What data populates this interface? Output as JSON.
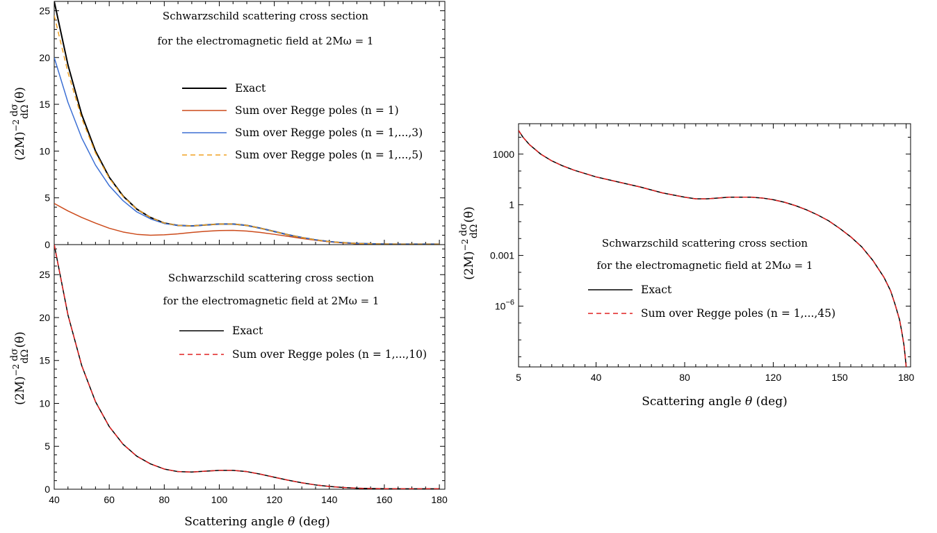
{
  "chart_data": [
    {
      "type": "line",
      "annotation": [
        "Schwarzschild scattering cross section",
        "for the electromagnetic field at 2Mω = 1"
      ],
      "ylabel": "(2M)⁻² dσ/dΩ(θ)",
      "ylabel_parts": {
        "prefix": "(2M)",
        "exponent": "−2",
        "numerator": "dσ",
        "denominator": "dΩ",
        "suffix": "(θ)"
      },
      "xlim": [
        40,
        182
      ],
      "ylim": [
        0,
        26
      ],
      "y_ticks": [
        0,
        5,
        10,
        15,
        20,
        25
      ],
      "y_tick_labels": [
        "0",
        "5",
        "10",
        "15",
        "20",
        "25"
      ],
      "grid": false,
      "legend_position": "center-right",
      "series": [
        {
          "name": "Exact",
          "color": "#000000",
          "dash": "solid",
          "x": [
            40,
            45,
            50,
            55,
            60,
            65,
            70,
            75,
            80,
            85,
            90,
            95,
            100,
            105,
            110,
            115,
            120,
            125,
            130,
            135,
            140,
            145,
            150,
            155,
            160,
            165,
            170,
            175,
            180
          ],
          "y": [
            26.0,
            19.2,
            13.9,
            10.0,
            7.2,
            5.2,
            3.8,
            2.9,
            2.3,
            2.05,
            2.0,
            2.1,
            2.2,
            2.2,
            2.05,
            1.75,
            1.4,
            1.05,
            0.75,
            0.5,
            0.32,
            0.2,
            0.12,
            0.08,
            0.06,
            0.05,
            0.05,
            0.05,
            0.05
          ]
        },
        {
          "name": "Sum over Regge poles (n = 1)",
          "color": "#cc4a1a",
          "dash": "solid",
          "x": [
            40,
            45,
            50,
            55,
            60,
            65,
            70,
            75,
            80,
            85,
            90,
            95,
            100,
            105,
            110,
            115,
            120,
            125,
            130,
            135,
            140,
            145,
            150,
            155,
            160,
            165,
            170,
            175,
            180
          ],
          "y": [
            4.4,
            3.6,
            2.9,
            2.3,
            1.75,
            1.35,
            1.1,
            1.0,
            1.05,
            1.15,
            1.3,
            1.42,
            1.5,
            1.52,
            1.45,
            1.3,
            1.1,
            0.88,
            0.66,
            0.46,
            0.3,
            0.18,
            0.1,
            0.06,
            0.04,
            0.03,
            0.02,
            0.02,
            0.02
          ]
        },
        {
          "name": "Sum over Regge poles (n = 1,...,3)",
          "color": "#3b6fd4",
          "dash": "solid",
          "x": [
            40,
            45,
            50,
            55,
            60,
            65,
            70,
            75,
            80,
            85,
            90,
            95,
            100,
            105,
            110,
            115,
            120,
            125,
            130,
            135,
            140,
            145,
            150,
            155,
            160,
            165,
            170,
            175,
            180
          ],
          "y": [
            20.0,
            15.2,
            11.4,
            8.5,
            6.3,
            4.7,
            3.5,
            2.75,
            2.25,
            2.05,
            2.0,
            2.1,
            2.2,
            2.2,
            2.05,
            1.75,
            1.4,
            1.05,
            0.75,
            0.5,
            0.32,
            0.2,
            0.12,
            0.08,
            0.06,
            0.05,
            0.05,
            0.05,
            0.05
          ]
        },
        {
          "name": "Sum over Regge poles (n = 1,...,5)",
          "color": "#f0a020",
          "dash": "dashed",
          "x": [
            40,
            45,
            50,
            55,
            60,
            65,
            70,
            75,
            80,
            85,
            90,
            95,
            100,
            105,
            110,
            115,
            120,
            125,
            130,
            135,
            140,
            145,
            150,
            155,
            160,
            165,
            170,
            175,
            180
          ],
          "y": [
            24.5,
            18.4,
            13.5,
            9.8,
            7.1,
            5.15,
            3.8,
            2.9,
            2.3,
            2.05,
            2.0,
            2.1,
            2.2,
            2.2,
            2.05,
            1.75,
            1.4,
            1.05,
            0.75,
            0.5,
            0.32,
            0.2,
            0.12,
            0.08,
            0.06,
            0.05,
            0.05,
            0.05,
            0.05
          ]
        }
      ]
    },
    {
      "type": "line",
      "annotation": [
        "Schwarzschild scattering cross section",
        "for the electromagnetic field at 2Mω = 1"
      ],
      "xlabel_parts": {
        "prefix": "Scattering angle ",
        "symbol": "θ",
        "suffix": " (deg)"
      },
      "ylabel_parts": {
        "prefix": "(2M)",
        "exponent": "−2",
        "numerator": "dσ",
        "denominator": "dΩ",
        "suffix": "(θ)"
      },
      "xlim": [
        40,
        182
      ],
      "ylim": [
        0,
        28.5
      ],
      "x_ticks": [
        40,
        60,
        80,
        100,
        120,
        140,
        160,
        180
      ],
      "x_tick_labels": [
        "40",
        "60",
        "80",
        "100",
        "120",
        "140",
        "160",
        "180"
      ],
      "y_ticks": [
        0,
        5,
        10,
        15,
        20,
        25
      ],
      "y_tick_labels": [
        "0",
        "5",
        "10",
        "15",
        "20",
        "25"
      ],
      "grid": false,
      "legend_position": "center-right",
      "series": [
        {
          "name": "Exact",
          "color": "#000000",
          "dash": "solid",
          "x": [
            40,
            45,
            50,
            55,
            60,
            65,
            70,
            75,
            80,
            85,
            90,
            95,
            100,
            105,
            110,
            115,
            120,
            125,
            130,
            135,
            140,
            145,
            150,
            155,
            160,
            165,
            170,
            175,
            180
          ],
          "y": [
            28.5,
            20.3,
            14.4,
            10.2,
            7.3,
            5.25,
            3.85,
            2.95,
            2.35,
            2.05,
            2.0,
            2.1,
            2.2,
            2.2,
            2.05,
            1.75,
            1.4,
            1.05,
            0.75,
            0.5,
            0.32,
            0.2,
            0.12,
            0.08,
            0.06,
            0.05,
            0.05,
            0.05,
            0.05
          ]
        },
        {
          "name": "Sum over Regge poles (n = 1,...,10)",
          "color": "#e02020",
          "dash": "dashed",
          "x": [
            40,
            45,
            50,
            55,
            60,
            65,
            70,
            75,
            80,
            85,
            90,
            95,
            100,
            105,
            110,
            115,
            120,
            125,
            130,
            135,
            140,
            145,
            150,
            155,
            160,
            165,
            170,
            175,
            180
          ],
          "y": [
            28.5,
            20.3,
            14.4,
            10.2,
            7.3,
            5.25,
            3.85,
            2.95,
            2.35,
            2.05,
            2.0,
            2.1,
            2.2,
            2.2,
            2.05,
            1.75,
            1.4,
            1.05,
            0.75,
            0.5,
            0.32,
            0.2,
            0.12,
            0.08,
            0.06,
            0.05,
            0.05,
            0.05,
            0.05
          ]
        }
      ]
    },
    {
      "type": "line",
      "y_scale": "log",
      "annotation": [
        "Schwarzschild scattering cross section",
        "for the electromagnetic field at 2Mω = 1"
      ],
      "xlabel_parts": {
        "prefix": "Scattering angle ",
        "symbol": "θ",
        "suffix": " (deg)"
      },
      "ylabel_parts": {
        "prefix": "(2M)",
        "exponent": "−2",
        "numerator": "dσ",
        "denominator": "dΩ",
        "suffix": "(θ)"
      },
      "xlim": [
        5,
        182
      ],
      "ylim_log10": [
        -9.6,
        4.8
      ],
      "x_ticks": [
        5,
        40,
        80,
        120,
        150,
        180
      ],
      "x_tick_labels": [
        "5",
        "40",
        "80",
        "120",
        "150",
        "180"
      ],
      "y_ticks_log10": [
        3,
        0,
        -3,
        -6
      ],
      "y_tick_labels": [
        {
          "base": "1000"
        },
        {
          "base": "1"
        },
        {
          "base": "0.001"
        },
        {
          "base": "10",
          "exp": "−6"
        }
      ],
      "grid": false,
      "legend_position": "center",
      "series": [
        {
          "name": "Exact",
          "color": "#000000",
          "dash": "solid",
          "x": [
            5,
            7,
            10,
            15,
            20,
            25,
            30,
            40,
            50,
            60,
            70,
            80,
            85,
            90,
            95,
            100,
            105,
            110,
            115,
            120,
            125,
            130,
            135,
            140,
            145,
            150,
            155,
            160,
            165,
            170,
            173,
            175,
            177,
            178,
            179,
            179.5,
            180
          ],
          "log10_y": [
            4.4,
            4.0,
            3.55,
            3.0,
            2.6,
            2.3,
            2.05,
            1.65,
            1.35,
            1.05,
            0.7,
            0.45,
            0.35,
            0.35,
            0.4,
            0.45,
            0.45,
            0.45,
            0.4,
            0.3,
            0.15,
            -0.05,
            -0.3,
            -0.6,
            -0.95,
            -1.4,
            -1.9,
            -2.5,
            -3.3,
            -4.3,
            -5.1,
            -5.9,
            -6.8,
            -7.5,
            -8.3,
            -8.9,
            -9.6
          ]
        },
        {
          "name": "Sum over Regge poles (n = 1,...,45)",
          "color": "#e02020",
          "dash": "dashed",
          "x": [
            5,
            7,
            10,
            15,
            20,
            25,
            30,
            40,
            50,
            60,
            70,
            80,
            85,
            90,
            95,
            100,
            105,
            110,
            115,
            120,
            125,
            130,
            135,
            140,
            145,
            150,
            155,
            160,
            165,
            170,
            173,
            175,
            177,
            178,
            179,
            179.5,
            180
          ],
          "log10_y": [
            4.4,
            4.0,
            3.55,
            3.0,
            2.6,
            2.3,
            2.05,
            1.65,
            1.35,
            1.05,
            0.7,
            0.45,
            0.35,
            0.35,
            0.4,
            0.45,
            0.45,
            0.45,
            0.4,
            0.3,
            0.15,
            -0.05,
            -0.3,
            -0.6,
            -0.95,
            -1.4,
            -1.9,
            -2.5,
            -3.3,
            -4.3,
            -5.1,
            -5.9,
            -6.8,
            -7.5,
            -8.3,
            -8.9,
            -9.6
          ]
        }
      ]
    }
  ]
}
